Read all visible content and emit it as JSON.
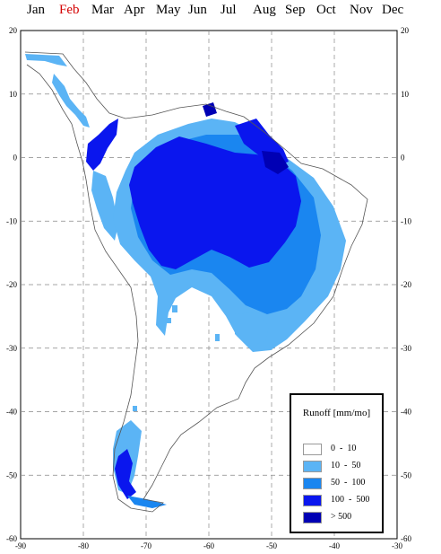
{
  "months": [
    {
      "label": "Jan",
      "selected": false
    },
    {
      "label": "Feb",
      "selected": true
    },
    {
      "label": "Mar",
      "selected": false
    },
    {
      "label": "Apr",
      "selected": false
    },
    {
      "label": "May",
      "selected": false
    },
    {
      "label": "Jun",
      "selected": false
    },
    {
      "label": "Jul",
      "selected": false
    },
    {
      "label": "Aug",
      "selected": false
    },
    {
      "label": "Sep",
      "selected": false
    },
    {
      "label": "Oct",
      "selected": false
    },
    {
      "label": "Nov",
      "selected": false
    },
    {
      "label": "Dec",
      "selected": false
    }
  ],
  "colors": {
    "selected_month": "#d40000",
    "class_0_10": "#ffffff",
    "class_10_50": "#5bb4f5",
    "class_50_100": "#1a86f0",
    "class_100_500": "#0a16ee",
    "class_gt_500": "#0000b4"
  },
  "map": {
    "lon_range": [
      -90,
      -30
    ],
    "lat_range": [
      -60,
      20
    ],
    "lon_ticks": [
      "-90",
      "-80",
      "-70",
      "-60",
      "-50",
      "-40",
      "-30"
    ],
    "lat_ticks": [
      "20",
      "10",
      "0",
      "-10",
      "-20",
      "-30",
      "-40",
      "-50",
      "-60"
    ]
  },
  "legend": {
    "title": "Runoff [mm/mo]",
    "items": [
      {
        "range": "0  -  10",
        "color": "#ffffff"
      },
      {
        "range": "10  -  50",
        "color": "#5bb4f5"
      },
      {
        "range": "50  -  100",
        "color": "#1a86f0"
      },
      {
        "range": "100  -  500",
        "color": "#0a16ee"
      },
      {
        "range": "> 500",
        "color": "#0000b4"
      }
    ]
  }
}
